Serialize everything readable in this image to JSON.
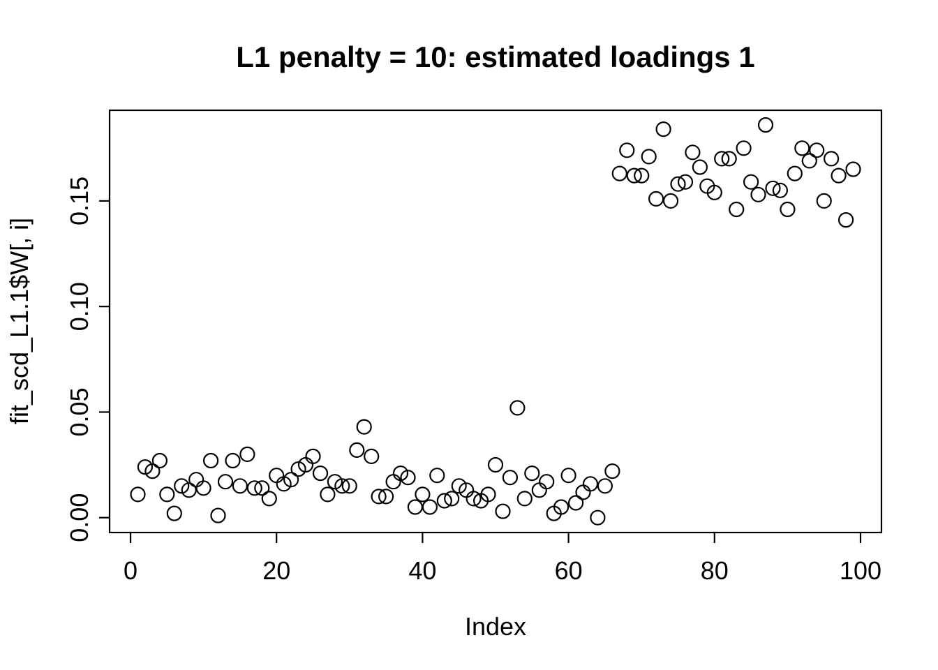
{
  "figure": {
    "background": "#ffffff",
    "foreground": "#000000"
  },
  "chart_data": {
    "type": "scatter",
    "title": "L1 penalty = 10: estimated loadings 1",
    "xlabel": "Index",
    "ylabel": "fit_scd_L1.1$W[, i]",
    "grid": false,
    "legend": null,
    "marker": {
      "shape": "open-circle",
      "stroke": "#000000",
      "fill": "none"
    },
    "x_ticks": [
      0,
      20,
      40,
      60,
      80,
      100
    ],
    "x_tick_labels": [
      "0",
      "20",
      "40",
      "60",
      "80",
      "100"
    ],
    "y_ticks": [
      0.0,
      0.05,
      0.1,
      0.15
    ],
    "y_tick_labels": [
      "0.00",
      "0.05",
      "0.10",
      "0.15"
    ],
    "xlim": [
      -2.87,
      102.87
    ],
    "ylim": [
      -0.00705,
      0.19295
    ],
    "n_points": 99,
    "x": [
      1,
      2,
      3,
      4,
      5,
      6,
      7,
      8,
      9,
      10,
      11,
      12,
      13,
      14,
      15,
      16,
      17,
      18,
      19,
      20,
      21,
      22,
      23,
      24,
      25,
      26,
      27,
      28,
      29,
      30,
      31,
      32,
      33,
      34,
      35,
      36,
      37,
      38,
      39,
      40,
      41,
      42,
      43,
      44,
      45,
      46,
      47,
      48,
      49,
      50,
      51,
      52,
      53,
      54,
      55,
      56,
      57,
      58,
      59,
      60,
      61,
      62,
      63,
      64,
      65,
      66,
      67,
      68,
      69,
      70,
      71,
      72,
      73,
      74,
      75,
      76,
      77,
      78,
      79,
      80,
      81,
      82,
      83,
      84,
      85,
      86,
      87,
      88,
      89,
      90,
      91,
      92,
      93,
      94,
      95,
      96,
      97,
      98,
      99
    ],
    "y": [
      0.011,
      0.024,
      0.022,
      0.027,
      0.011,
      0.002,
      0.015,
      0.013,
      0.018,
      0.014,
      0.027,
      0.001,
      0.017,
      0.027,
      0.015,
      0.03,
      0.014,
      0.014,
      0.009,
      0.02,
      0.016,
      0.018,
      0.023,
      0.025,
      0.029,
      0.021,
      0.011,
      0.017,
      0.015,
      0.015,
      0.032,
      0.043,
      0.029,
      0.01,
      0.01,
      0.017,
      0.021,
      0.019,
      0.005,
      0.011,
      0.005,
      0.02,
      0.008,
      0.009,
      0.015,
      0.013,
      0.009,
      0.008,
      0.011,
      0.025,
      0.003,
      0.019,
      0.052,
      0.009,
      0.021,
      0.013,
      0.017,
      0.002,
      0.005,
      0.02,
      0.007,
      0.012,
      0.016,
      0.0,
      0.015,
      0.022,
      0.163,
      0.174,
      0.162,
      0.162,
      0.171,
      0.151,
      0.184,
      0.15,
      0.158,
      0.159,
      0.173,
      0.166,
      0.157,
      0.154,
      0.17,
      0.17,
      0.146,
      0.175,
      0.159,
      0.153,
      0.186,
      0.156,
      0.155,
      0.146,
      0.163,
      0.175,
      0.169,
      0.174,
      0.15,
      0.17,
      0.162,
      0.141,
      0.165
    ]
  }
}
